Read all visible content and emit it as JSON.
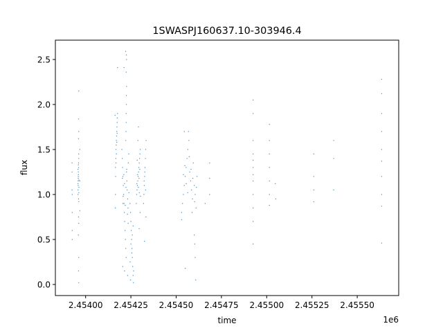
{
  "chart_data": {
    "type": "scatter",
    "title": "1SWASPJ160637.10-303946.4",
    "xlabel": "time",
    "ylabel": "flux",
    "x_offset_label": "1e6",
    "xlim": [
      2453833,
      2455729
    ],
    "ylim": [
      -0.123,
      2.715
    ],
    "xticks": [
      2454000,
      2454250,
      2454500,
      2454750,
      2455000,
      2455250,
      2455500
    ],
    "xtick_labels": [
      "2.45400",
      "2.45425",
      "2.45450",
      "2.45475",
      "2.45500",
      "2.45525",
      "2.45550"
    ],
    "yticks": [
      0.0,
      0.5,
      1.0,
      1.5,
      2.0,
      2.5
    ],
    "ytick_labels": [
      "0.0",
      "0.5",
      "1.0",
      "1.5",
      "2.0",
      "2.5"
    ],
    "grid": false,
    "legend": "none",
    "marker_color": "#1f77b4",
    "points": [
      [
        2453925,
        1.35
      ],
      [
        2453925,
        1.25
      ],
      [
        2453925,
        1.05
      ],
      [
        2453926,
        1.0
      ],
      [
        2453926,
        0.8
      ],
      [
        2453926,
        0.6
      ],
      [
        2453926,
        0.5
      ],
      [
        2453958,
        1.0
      ],
      [
        2453958,
        1.05
      ],
      [
        2453959,
        1.1
      ],
      [
        2453959,
        1.15
      ],
      [
        2453960,
        1.2
      ],
      [
        2453960,
        1.25
      ],
      [
        2453961,
        1.3
      ],
      [
        2453961,
        1.35
      ],
      [
        2453962,
        1.4
      ],
      [
        2453962,
        1.45
      ],
      [
        2453958,
        1.12
      ],
      [
        2453959,
        1.18
      ],
      [
        2453960,
        1.22
      ],
      [
        2453961,
        0.95
      ],
      [
        2453962,
        0.92
      ],
      [
        2453963,
        1.08
      ],
      [
        2453958,
        1.28
      ],
      [
        2453960,
        1.33
      ],
      [
        2453962,
        1.02
      ],
      [
        2453963,
        1.16
      ],
      [
        2453961,
        1.62
      ],
      [
        2453962,
        1.7
      ],
      [
        2453961,
        1.84
      ],
      [
        2453962,
        2.15
      ],
      [
        2453961,
        0.75
      ],
      [
        2453962,
        0.68
      ],
      [
        2453962,
        0.3
      ],
      [
        2453961,
        0.15
      ],
      [
        2453962,
        0.02
      ],
      [
        2453960,
        0.55
      ],
      [
        2453968,
        1.5
      ],
      [
        2453968,
        1.15
      ],
      [
        2453968,
        0.82
      ],
      [
        2454165,
        1.3
      ],
      [
        2454167,
        1.4
      ],
      [
        2454168,
        1.5
      ],
      [
        2454169,
        1.55
      ],
      [
        2454170,
        1.6
      ],
      [
        2454171,
        1.65
      ],
      [
        2454172,
        1.7
      ],
      [
        2454173,
        1.75
      ],
      [
        2454170,
        1.45
      ],
      [
        2454174,
        1.8
      ],
      [
        2454175,
        1.85
      ],
      [
        2454176,
        1.9
      ],
      [
        2454168,
        1.35
      ],
      [
        2454166,
        1.2
      ],
      [
        2454165,
        1.0
      ],
      [
        2454164,
        0.85
      ],
      [
        2454172,
        1.58
      ],
      [
        2454174,
        1.68
      ],
      [
        2454163,
        1.88
      ],
      [
        2454176,
        2.41
      ],
      [
        2454200,
        1.5
      ],
      [
        2454202,
        1.4
      ],
      [
        2454204,
        1.3
      ],
      [
        2454206,
        1.2
      ],
      [
        2454208,
        1.1
      ],
      [
        2454210,
        1.0
      ],
      [
        2454212,
        0.9
      ],
      [
        2454214,
        0.8
      ],
      [
        2454216,
        0.7
      ],
      [
        2454218,
        0.6
      ],
      [
        2454220,
        0.5
      ],
      [
        2454222,
        0.4
      ],
      [
        2454224,
        0.3
      ],
      [
        2454226,
        1.25
      ],
      [
        2454228,
        1.15
      ],
      [
        2454230,
        1.05
      ],
      [
        2454232,
        0.95
      ],
      [
        2454234,
        0.85
      ],
      [
        2454236,
        1.35
      ],
      [
        2454238,
        1.45
      ],
      [
        2454203,
        1.18
      ],
      [
        2454207,
        0.98
      ],
      [
        2454211,
        1.22
      ],
      [
        2454215,
        1.12
      ],
      [
        2454219,
        0.88
      ],
      [
        2454223,
        1.08
      ],
      [
        2454227,
        1.28
      ],
      [
        2454231,
        0.78
      ],
      [
        2454235,
        0.68
      ],
      [
        2454239,
        1.02
      ],
      [
        2454222,
        1.6
      ],
      [
        2454223,
        1.7
      ],
      [
        2454224,
        1.8
      ],
      [
        2454224,
        1.9
      ],
      [
        2454225,
        2.0
      ],
      [
        2454225,
        2.1
      ],
      [
        2454226,
        2.2
      ],
      [
        2454224,
        2.36
      ],
      [
        2454225,
        2.55
      ],
      [
        2454221,
        2.59
      ],
      [
        2454212,
        2.41
      ],
      [
        2454226,
        2.5
      ],
      [
        2454205,
        0.2
      ],
      [
        2454215,
        0.15
      ],
      [
        2454232,
        0.1
      ],
      [
        2454206,
        0.9
      ],
      [
        2454245,
        0.9
      ],
      [
        2454248,
        0.8
      ],
      [
        2454250,
        0.7
      ],
      [
        2454252,
        0.6
      ],
      [
        2454254,
        0.5
      ],
      [
        2454256,
        0.4
      ],
      [
        2454258,
        0.3
      ],
      [
        2454260,
        0.2
      ],
      [
        2454262,
        0.1
      ],
      [
        2454264,
        0.02
      ],
      [
        2454250,
        0.45
      ],
      [
        2454255,
        0.35
      ],
      [
        2454258,
        0.55
      ],
      [
        2454246,
        0.25
      ],
      [
        2454262,
        0.65
      ],
      [
        2454265,
        0.15
      ],
      [
        2454248,
        0.05
      ],
      [
        2454280,
        0.9
      ],
      [
        2454282,
        1.0
      ],
      [
        2454284,
        1.05
      ],
      [
        2454286,
        1.1
      ],
      [
        2454288,
        1.15
      ],
      [
        2454290,
        1.2
      ],
      [
        2454292,
        1.25
      ],
      [
        2454294,
        1.3
      ],
      [
        2454296,
        1.35
      ],
      [
        2454298,
        1.4
      ],
      [
        2454300,
        1.45
      ],
      [
        2454302,
        1.5
      ],
      [
        2454283,
        1.12
      ],
      [
        2454287,
        1.22
      ],
      [
        2454291,
        1.08
      ],
      [
        2454295,
        1.18
      ],
      [
        2454299,
        1.28
      ],
      [
        2454303,
        0.98
      ],
      [
        2454285,
        1.38
      ],
      [
        2454297,
        1.02
      ],
      [
        2454289,
        1.6
      ],
      [
        2454292,
        1.75
      ],
      [
        2454301,
        0.8
      ],
      [
        2454296,
        0.62
      ],
      [
        2454320,
        0.9
      ],
      [
        2454322,
        1.0
      ],
      [
        2454324,
        1.1
      ],
      [
        2454326,
        1.2
      ],
      [
        2454328,
        1.3
      ],
      [
        2454330,
        1.4
      ],
      [
        2454332,
        1.5
      ],
      [
        2454334,
        1.6
      ],
      [
        2454323,
        1.15
      ],
      [
        2454327,
        1.25
      ],
      [
        2454331,
        1.05
      ],
      [
        2454333,
        0.75
      ],
      [
        2454325,
        0.48
      ],
      [
        2454530,
        0.8
      ],
      [
        2454535,
        0.9
      ],
      [
        2454540,
        1.0
      ],
      [
        2454545,
        1.1
      ],
      [
        2454550,
        1.2
      ],
      [
        2454555,
        1.3
      ],
      [
        2454560,
        1.4
      ],
      [
        2454565,
        1.5
      ],
      [
        2454570,
        1.6
      ],
      [
        2454575,
        1.25
      ],
      [
        2454580,
        1.15
      ],
      [
        2454585,
        1.05
      ],
      [
        2454590,
        0.95
      ],
      [
        2454595,
        1.35
      ],
      [
        2454600,
        1.1
      ],
      [
        2454605,
        1.0
      ],
      [
        2454610,
        0.85
      ],
      [
        2454615,
        1.2
      ],
      [
        2454540,
        1.22
      ],
      [
        2454548,
        1.32
      ],
      [
        2454556,
        1.12
      ],
      [
        2454564,
        1.02
      ],
      [
        2454572,
        1.42
      ],
      [
        2454582,
        1.28
      ],
      [
        2454592,
        1.18
      ],
      [
        2454602,
        0.92
      ],
      [
        2454612,
        1.08
      ],
      [
        2454545,
        1.7
      ],
      [
        2454568,
        1.7
      ],
      [
        2454550,
        0.18
      ],
      [
        2454530,
        0.72
      ],
      [
        2454600,
        0.55
      ],
      [
        2454605,
        0.3
      ],
      [
        2454608,
        0.05
      ],
      [
        2454588,
        0.8
      ],
      [
        2454603,
        0.45
      ],
      [
        2454685,
        1.35
      ],
      [
        2454685,
        1.18
      ],
      [
        2454685,
        1.0
      ],
      [
        2454660,
        0.9
      ],
      [
        2454925,
        2.05
      ],
      [
        2454925,
        1.9
      ],
      [
        2454925,
        1.6
      ],
      [
        2454925,
        1.45
      ],
      [
        2454925,
        1.3
      ],
      [
        2454925,
        1.15
      ],
      [
        2454925,
        1.0
      ],
      [
        2454925,
        0.85
      ],
      [
        2454925,
        0.7
      ],
      [
        2454925,
        0.45
      ],
      [
        2454925,
        1.22
      ],
      [
        2454925,
        1.38
      ],
      [
        2455015,
        1.78
      ],
      [
        2455015,
        1.6
      ],
      [
        2455015,
        1.45
      ],
      [
        2455015,
        1.3
      ],
      [
        2455015,
        1.15
      ],
      [
        2455015,
        1.0
      ],
      [
        2455015,
        0.88
      ],
      [
        2455050,
        0.95
      ],
      [
        2455048,
        1.12
      ],
      [
        2455260,
        1.45
      ],
      [
        2455260,
        1.2
      ],
      [
        2455260,
        0.92
      ],
      [
        2455260,
        1.05
      ],
      [
        2455370,
        1.6
      ],
      [
        2455370,
        1.4
      ],
      [
        2455370,
        1.05
      ],
      [
        2455635,
        2.28
      ],
      [
        2455635,
        2.12
      ],
      [
        2455635,
        1.9
      ],
      [
        2455635,
        1.7
      ],
      [
        2455635,
        1.5
      ],
      [
        2455635,
        1.37
      ],
      [
        2455635,
        1.2
      ],
      [
        2455635,
        1.0
      ],
      [
        2455635,
        0.87
      ],
      [
        2455635,
        0.46
      ]
    ]
  }
}
